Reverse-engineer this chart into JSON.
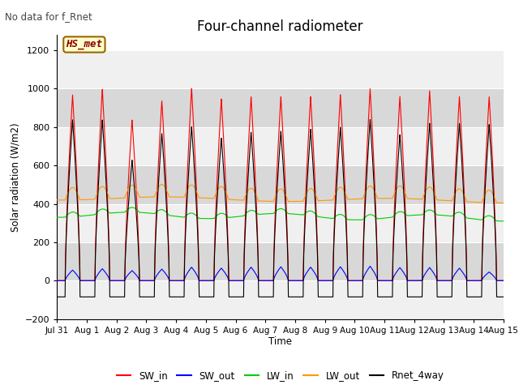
{
  "title": "Four-channel radiometer",
  "top_left_text": "No data for f_Rnet",
  "ylabel": "Solar radiation (W/m2)",
  "xlabel": "Time",
  "ylim": [
    -200,
    1280
  ],
  "yticks": [
    -200,
    0,
    200,
    400,
    600,
    800,
    1000,
    1200
  ],
  "n_days": 15,
  "x_tick_labels": [
    "Jul 31",
    "Aug 1",
    "Aug 2",
    "Aug 3",
    "Aug 4",
    "Aug 5",
    "Aug 6",
    "Aug 7",
    "Aug 8",
    "Aug 9",
    "Aug 10",
    "Aug 11",
    "Aug 12",
    "Aug 13",
    "Aug 14",
    "Aug 15"
  ],
  "legend_entries": [
    "SW_in",
    "SW_out",
    "LW_in",
    "LW_out",
    "Rnet_4way"
  ],
  "legend_colors": [
    "#ff0000",
    "#0000ff",
    "#00cc00",
    "#ff9900",
    "#000000"
  ],
  "box_label": "HS_met",
  "box_facecolor": "#ffffcc",
  "box_edgecolor": "#996600",
  "plot_bg_light": "#f0f0f0",
  "plot_bg_dark": "#d8d8d8",
  "fig_background": "#ffffff",
  "grid_color": "#ffffff",
  "SW_in_peak": [
    970,
    1000,
    840,
    940,
    1005,
    950,
    960,
    960,
    960,
    970,
    1000,
    960,
    990,
    960,
    960
  ],
  "SW_out_peaks": [
    55,
    62,
    52,
    60,
    70,
    65,
    70,
    72,
    70,
    72,
    75,
    68,
    68,
    65,
    45
  ],
  "LW_in_base": 335,
  "LW_out_base": 415,
  "Rnet_peak": [
    840,
    840,
    630,
    770,
    805,
    745,
    775,
    780,
    790,
    800,
    840,
    760,
    820,
    820,
    815
  ],
  "Rnet_night_min": -100,
  "pts_per_day": 288,
  "day_start": 0.27,
  "day_end": 0.77
}
